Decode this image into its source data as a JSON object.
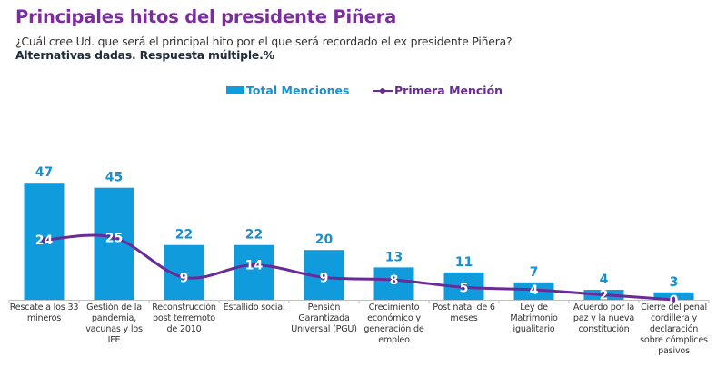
{
  "header": {
    "title": "Principales hitos del presidente Piñera",
    "question": "¿Cuál cree Ud. que será el principal hito por el que será recordado el ex presidente Piñera?",
    "note": "Alternativas dadas. Respuesta múltiple.%"
  },
  "colors": {
    "title": "#7b2c9e",
    "bar": "#0f9bdc",
    "bar_label": "#1a8fcf",
    "line": "#6a2a97",
    "line_label": "#ffffff"
  },
  "chart_data": {
    "type": "bar",
    "title": "Principales hitos del presidente Piñera",
    "xlabel": "",
    "ylabel": "",
    "ylim": [
      0,
      50
    ],
    "grid": false,
    "legend_position": "top-center",
    "categories": [
      "Rescate a los 33 mineros",
      "Gestión de la pandemia, vacunas y los IFE",
      "Reconstrucción post terremoto de 2010",
      "Estallido social",
      "Pensión Garantizada Universal (PGU)",
      "Crecimiento económico y generación de empleo",
      "Post natal de 6 meses",
      "Ley de Matrimonio igualitario",
      "Acuerdo por la paz y la nueva constitución",
      "Cierre del penal cordillera y declaración sobre cómplices pasivos"
    ],
    "series": [
      {
        "name": "Total Menciones",
        "type": "bar",
        "values": [
          47,
          45,
          22,
          22,
          20,
          13,
          11,
          7,
          4,
          3
        ]
      },
      {
        "name": "Primera Mención",
        "type": "line",
        "values": [
          24,
          25,
          9,
          14,
          9,
          8,
          5,
          4,
          2,
          0
        ]
      }
    ]
  }
}
